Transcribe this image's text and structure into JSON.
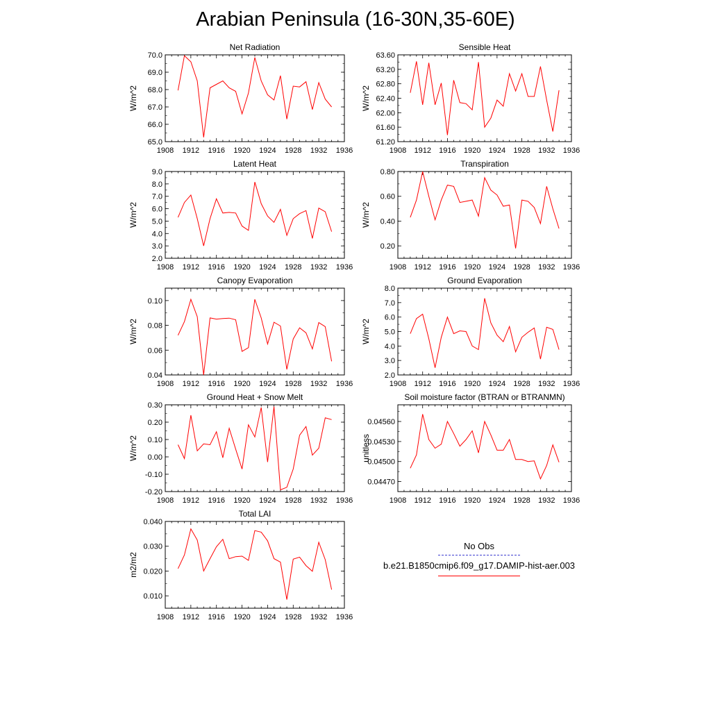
{
  "title": "Arabian Peninsula (16-30N,35-60E)",
  "legend": {
    "obs_label": "No Obs",
    "obs_color": "#3b3bd0",
    "case_label": "b.e21.B1850cmip6.f09_g17.DAMIP-hist-aer.003",
    "case_color": "#ff0000"
  },
  "chart_data": [
    {
      "type": "line",
      "title": "Net Radiation",
      "ylabel": "W/m^2",
      "xlim": [
        1908,
        1936
      ],
      "ylim": [
        65.0,
        70.0
      ],
      "xticks": [
        "1908",
        "1912",
        "1916",
        "1920",
        "1924",
        "1928",
        "1932",
        "1936"
      ],
      "yticks": [
        "65.0",
        "66.0",
        "67.0",
        "68.0",
        "69.0",
        "70.0"
      ],
      "x": [
        1910,
        1911,
        1912,
        1913,
        1914,
        1915,
        1916,
        1917,
        1918,
        1919,
        1920,
        1921,
        1922,
        1923,
        1924,
        1925,
        1926,
        1927,
        1928,
        1929,
        1930,
        1931,
        1932,
        1933,
        1934
      ],
      "series": [
        {
          "values": [
            67.95,
            69.95,
            69.6,
            68.5,
            65.25,
            68.1,
            68.3,
            68.5,
            68.1,
            67.9,
            66.6,
            67.8,
            69.85,
            68.5,
            67.7,
            67.4,
            68.8,
            66.3,
            68.2,
            68.15,
            68.45,
            66.85,
            68.4,
            67.45,
            67.0
          ]
        }
      ]
    },
    {
      "type": "line",
      "title": "Sensible Heat",
      "ylabel": "W/m^2",
      "xlim": [
        1908,
        1936
      ],
      "ylim": [
        61.2,
        63.6
      ],
      "xticks": [
        "1908",
        "1912",
        "1916",
        "1920",
        "1924",
        "1928",
        "1932",
        "1936"
      ],
      "yticks": [
        "61.20",
        "61.60",
        "62.00",
        "62.40",
        "62.80",
        "63.20",
        "63.60"
      ],
      "x": [
        1910,
        1911,
        1912,
        1913,
        1914,
        1915,
        1916,
        1917,
        1918,
        1919,
        1920,
        1921,
        1922,
        1923,
        1924,
        1925,
        1926,
        1927,
        1928,
        1929,
        1930,
        1931,
        1932,
        1933,
        1934
      ],
      "series": [
        {
          "values": [
            62.55,
            63.42,
            62.22,
            63.38,
            62.22,
            62.82,
            61.38,
            62.9,
            62.28,
            62.25,
            62.08,
            63.4,
            61.6,
            61.85,
            62.35,
            62.18,
            63.08,
            62.6,
            63.08,
            62.45,
            62.45,
            63.28,
            62.35,
            61.48,
            62.62
          ]
        }
      ]
    },
    {
      "type": "line",
      "title": "Latent Heat",
      "ylabel": "W/m^2",
      "xlim": [
        1908,
        1936
      ],
      "ylim": [
        2.0,
        9.0
      ],
      "xticks": [
        "1908",
        "1912",
        "1916",
        "1920",
        "1924",
        "1928",
        "1932",
        "1936"
      ],
      "yticks": [
        "2.0",
        "3.0",
        "4.0",
        "5.0",
        "6.0",
        "7.0",
        "8.0",
        "9.0"
      ],
      "x": [
        1910,
        1911,
        1912,
        1913,
        1914,
        1915,
        1916,
        1917,
        1918,
        1919,
        1920,
        1921,
        1922,
        1923,
        1924,
        1925,
        1926,
        1927,
        1928,
        1929,
        1930,
        1931,
        1932,
        1933,
        1934
      ],
      "series": [
        {
          "values": [
            5.3,
            6.5,
            7.1,
            5.2,
            3.0,
            5.2,
            6.8,
            5.65,
            5.7,
            5.65,
            4.6,
            4.25,
            8.15,
            6.4,
            5.4,
            4.9,
            5.95,
            3.85,
            5.2,
            5.6,
            5.85,
            3.6,
            6.05,
            5.75,
            4.15
          ]
        }
      ]
    },
    {
      "type": "line",
      "title": "Transpiration",
      "ylabel": "W/m^2",
      "xlim": [
        1908,
        1936
      ],
      "ylim": [
        0.1,
        0.8
      ],
      "xticks": [
        "1908",
        "1912",
        "1916",
        "1920",
        "1924",
        "1928",
        "1932",
        "1936"
      ],
      "yticks": [
        "0.20",
        "0.40",
        "0.60",
        "0.80"
      ],
      "x": [
        1910,
        1911,
        1912,
        1913,
        1914,
        1915,
        1916,
        1917,
        1918,
        1919,
        1920,
        1921,
        1922,
        1923,
        1924,
        1925,
        1926,
        1927,
        1928,
        1929,
        1930,
        1931,
        1932,
        1933,
        1934
      ],
      "series": [
        {
          "values": [
            0.43,
            0.57,
            0.8,
            0.6,
            0.41,
            0.57,
            0.69,
            0.68,
            0.55,
            0.56,
            0.57,
            0.44,
            0.75,
            0.65,
            0.61,
            0.52,
            0.53,
            0.18,
            0.57,
            0.56,
            0.51,
            0.38,
            0.68,
            0.5,
            0.34
          ]
        }
      ]
    },
    {
      "type": "line",
      "title": "Canopy Evaporation",
      "ylabel": "W/m^2",
      "xlim": [
        1908,
        1936
      ],
      "ylim": [
        0.04,
        0.11
      ],
      "xticks": [
        "1908",
        "1912",
        "1916",
        "1920",
        "1924",
        "1928",
        "1932",
        "1936"
      ],
      "yticks": [
        "0.04",
        "0.06",
        "0.08",
        "0.10"
      ],
      "x": [
        1910,
        1911,
        1912,
        1913,
        1914,
        1915,
        1916,
        1917,
        1918,
        1919,
        1920,
        1921,
        1922,
        1923,
        1924,
        1925,
        1926,
        1927,
        1928,
        1929,
        1930,
        1931,
        1932,
        1933,
        1934
      ],
      "series": [
        {
          "values": [
            0.072,
            0.083,
            0.101,
            0.087,
            0.04,
            0.086,
            0.085,
            0.0855,
            0.0858,
            0.0845,
            0.059,
            0.062,
            0.101,
            0.086,
            0.065,
            0.0825,
            0.0795,
            0.0445,
            0.069,
            0.078,
            0.074,
            0.061,
            0.0822,
            0.079,
            0.051
          ]
        }
      ]
    },
    {
      "type": "line",
      "title": "Ground Evaporation",
      "ylabel": "W/m^2",
      "xlim": [
        1908,
        1936
      ],
      "ylim": [
        2.0,
        8.0
      ],
      "xticks": [
        "1908",
        "1912",
        "1916",
        "1920",
        "1924",
        "1928",
        "1932",
        "1936"
      ],
      "yticks": [
        "2.0",
        "3.0",
        "4.0",
        "5.0",
        "6.0",
        "7.0",
        "8.0"
      ],
      "x": [
        1910,
        1911,
        1912,
        1913,
        1914,
        1915,
        1916,
        1917,
        1918,
        1919,
        1920,
        1921,
        1922,
        1923,
        1924,
        1925,
        1926,
        1927,
        1928,
        1929,
        1930,
        1931,
        1932,
        1933,
        1934
      ],
      "series": [
        {
          "values": [
            4.85,
            5.9,
            6.2,
            4.5,
            2.5,
            4.6,
            6.0,
            4.85,
            5.05,
            5.0,
            4.0,
            3.75,
            7.3,
            5.6,
            4.75,
            4.3,
            5.35,
            3.6,
            4.6,
            4.95,
            5.25,
            3.1,
            5.3,
            5.15,
            3.75
          ]
        }
      ]
    },
    {
      "type": "line",
      "title": "Ground Heat + Snow Melt",
      "ylabel": "W/m^2",
      "xlim": [
        1908,
        1936
      ],
      "ylim": [
        -0.2,
        0.3
      ],
      "xticks": [
        "1908",
        "1912",
        "1916",
        "1920",
        "1924",
        "1928",
        "1932",
        "1936"
      ],
      "yticks": [
        "-0.20",
        "-0.10",
        "0.00",
        "0.10",
        "0.20",
        "0.30"
      ],
      "x": [
        1910,
        1911,
        1912,
        1913,
        1914,
        1915,
        1916,
        1917,
        1918,
        1919,
        1920,
        1921,
        1922,
        1923,
        1924,
        1925,
        1926,
        1927,
        1928,
        1929,
        1930,
        1931,
        1932,
        1933,
        1934
      ],
      "series": [
        {
          "values": [
            0.07,
            -0.01,
            0.24,
            0.035,
            0.075,
            0.07,
            0.145,
            -0.005,
            0.165,
            0.045,
            -0.07,
            0.185,
            0.115,
            0.285,
            -0.03,
            0.29,
            -0.19,
            -0.175,
            -0.07,
            0.125,
            0.175,
            0.01,
            0.05,
            0.225,
            0.215
          ]
        }
      ]
    },
    {
      "type": "line",
      "title": "Soil moisture factor (BTRAN or BTRANMN)",
      "ylabel": "unitless",
      "xlim": [
        1908,
        1936
      ],
      "ylim": [
        0.04455,
        0.04585
      ],
      "xticks": [
        "1908",
        "1912",
        "1916",
        "1920",
        "1924",
        "1928",
        "1932",
        "1936"
      ],
      "yticks": [
        "0.04470",
        "0.04500",
        "0.04530",
        "0.04560"
      ],
      "x": [
        1910,
        1911,
        1912,
        1913,
        1914,
        1915,
        1916,
        1917,
        1918,
        1919,
        1920,
        1921,
        1922,
        1923,
        1924,
        1925,
        1926,
        1927,
        1928,
        1929,
        1930,
        1931,
        1932,
        1933,
        1934
      ],
      "series": [
        {
          "values": [
            0.0449,
            0.0451,
            0.04571,
            0.04533,
            0.0452,
            0.04526,
            0.0456,
            0.04542,
            0.04523,
            0.04533,
            0.04546,
            0.04513,
            0.0456,
            0.0454,
            0.04517,
            0.04517,
            0.04533,
            0.04503,
            0.04503,
            0.045,
            0.04501,
            0.04474,
            0.04494,
            0.04525,
            0.04499
          ]
        }
      ]
    },
    {
      "type": "line",
      "title": "Total LAI",
      "ylabel": "m2/m2",
      "xlim": [
        1908,
        1936
      ],
      "ylim": [
        0.005,
        0.04
      ],
      "xticks": [
        "1908",
        "1912",
        "1916",
        "1920",
        "1924",
        "1928",
        "1932",
        "1936"
      ],
      "yticks": [
        "0.010",
        "0.020",
        "0.030",
        "0.040"
      ],
      "x": [
        1910,
        1911,
        1912,
        1913,
        1914,
        1915,
        1916,
        1917,
        1918,
        1919,
        1920,
        1921,
        1922,
        1923,
        1924,
        1925,
        1926,
        1927,
        1928,
        1929,
        1930,
        1931,
        1932,
        1933,
        1934
      ],
      "series": [
        {
          "values": [
            0.021,
            0.0265,
            0.037,
            0.0325,
            0.02,
            0.025,
            0.0298,
            0.0328,
            0.025,
            0.0258,
            0.026,
            0.0243,
            0.0363,
            0.0357,
            0.0322,
            0.025,
            0.0236,
            0.0085,
            0.0248,
            0.0256,
            0.0222,
            0.0199,
            0.0316,
            0.0246,
            0.0125
          ]
        }
      ]
    }
  ]
}
